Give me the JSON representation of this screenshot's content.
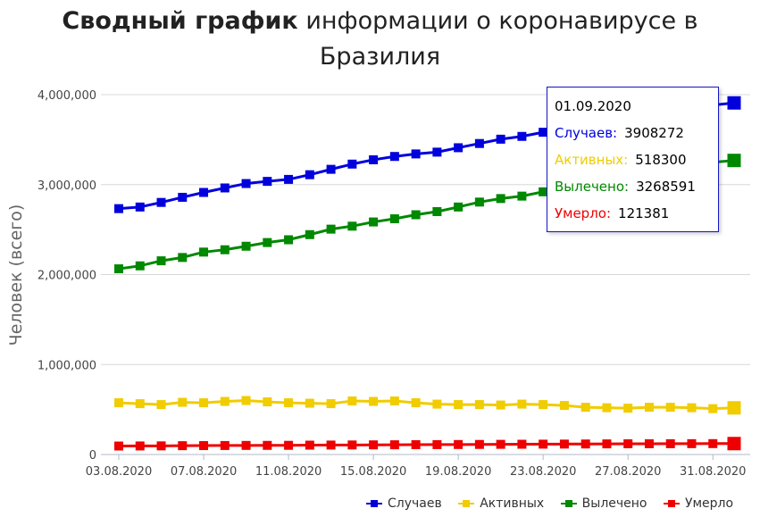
{
  "title": {
    "bold": "Сводный график",
    "rest": " информации о коронавирусе в Бразилия"
  },
  "chart_data": {
    "type": "line",
    "ylabel": "Человек (всего)",
    "ylim": [
      0,
      4000000
    ],
    "yticks": [
      0,
      1000000,
      2000000,
      3000000,
      4000000
    ],
    "ytick_labels": [
      "0",
      "1,000,000",
      "2,000,000",
      "3,000,000",
      "4,000,000"
    ],
    "categories": [
      "03.08.2020",
      "04.08.2020",
      "05.08.2020",
      "06.08.2020",
      "07.08.2020",
      "08.08.2020",
      "09.08.2020",
      "10.08.2020",
      "11.08.2020",
      "12.08.2020",
      "13.08.2020",
      "14.08.2020",
      "15.08.2020",
      "16.08.2020",
      "17.08.2020",
      "18.08.2020",
      "19.08.2020",
      "20.08.2020",
      "21.08.2020",
      "22.08.2020",
      "23.08.2020",
      "24.08.2020",
      "25.08.2020",
      "26.08.2020",
      "27.08.2020",
      "28.08.2020",
      "29.08.2020",
      "30.08.2020",
      "31.08.2020",
      "01.09.2020"
    ],
    "xtick_labels": [
      "03.08.2020",
      "07.08.2020",
      "11.08.2020",
      "15.08.2020",
      "19.08.2020",
      "23.08.2020",
      "27.08.2020",
      "31.08.2020"
    ],
    "grid": true,
    "legend_position": "bottom-right",
    "series": [
      {
        "name": "Случаев",
        "color": "#0000dd",
        "values": [
          2733000,
          2751000,
          2802000,
          2859000,
          2913000,
          2963000,
          3012000,
          3036000,
          3058000,
          3110000,
          3170000,
          3228000,
          3276000,
          3313000,
          3341000,
          3361000,
          3410000,
          3457000,
          3505000,
          3536000,
          3582000,
          3606000,
          3658000,
          3717000,
          3762000,
          3798000,
          3845000,
          3864000,
          3884000,
          3908272
        ]
      },
      {
        "name": "Активных",
        "color": "#f0cc00",
        "values": [
          575000,
          565000,
          555000,
          580000,
          575000,
          590000,
          600000,
          585000,
          575000,
          570000,
          565000,
          595000,
          590000,
          595000,
          575000,
          560000,
          555000,
          555000,
          550000,
          560000,
          555000,
          545000,
          525000,
          520000,
          515000,
          525000,
          525000,
          520000,
          510000,
          518300
        ]
      },
      {
        "name": "Вылечено",
        "color": "#008800",
        "values": [
          2064000,
          2097000,
          2153000,
          2190000,
          2250000,
          2276000,
          2315000,
          2356000,
          2387000,
          2444000,
          2505000,
          2538000,
          2585000,
          2620000,
          2665000,
          2700000,
          2751000,
          2806000,
          2845000,
          2872000,
          2920000,
          2948000,
          3013000,
          3076000,
          3125000,
          3151000,
          3199000,
          3222000,
          3248000,
          3268591
        ]
      },
      {
        "name": "Умерло",
        "color": "#ee0000",
        "values": [
          94000,
          95000,
          96000,
          98000,
          99000,
          100000,
          101000,
          101500,
          102000,
          104000,
          105000,
          106000,
          107000,
          108000,
          109000,
          110000,
          111000,
          112000,
          113000,
          114000,
          115000,
          116000,
          117000,
          118000,
          119000,
          119500,
          120000,
          120500,
          121000,
          121381
        ]
      }
    ]
  },
  "tooltip": {
    "date": "01.09.2020",
    "rows": [
      {
        "label": "Случаев:",
        "value": "3908272",
        "color": "#0000dd"
      },
      {
        "label": "Активных:",
        "value": "518300",
        "color": "#f0cc00"
      },
      {
        "label": "Вылечено:",
        "value": "3268591",
        "color": "#008800"
      },
      {
        "label": "Умерло:",
        "value": "121381",
        "color": "#ee0000"
      }
    ]
  },
  "legend": [
    {
      "label": "Случаев",
      "color": "#0000dd"
    },
    {
      "label": "Активных",
      "color": "#f0cc00"
    },
    {
      "label": "Вылечено",
      "color": "#008800"
    },
    {
      "label": "Умерло",
      "color": "#ee0000"
    }
  ]
}
